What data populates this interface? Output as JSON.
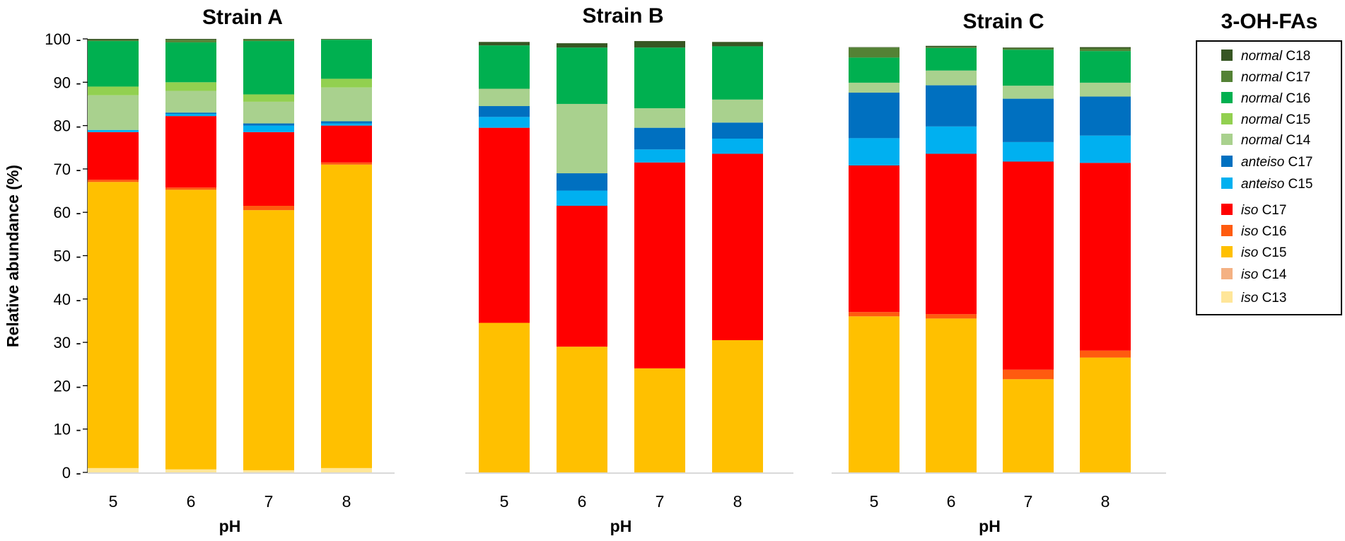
{
  "chart_data": {
    "type": "bar",
    "stacked": true,
    "ylabel": "Relative abundance (%)",
    "xlabel": "pH",
    "ylim": [
      0,
      100
    ],
    "yticks": [
      "0",
      "10",
      "20",
      "30",
      "40",
      "50",
      "60",
      "70",
      "80",
      "90",
      "100"
    ],
    "categories": [
      "5",
      "6",
      "7",
      "8"
    ],
    "legend": {
      "title": "3-OH-FAs",
      "entries": [
        {
          "key": "n18",
          "prefix": "normal",
          "suffix": " C18",
          "color": "#375623"
        },
        {
          "key": "n17",
          "prefix": "normal",
          "suffix": " C17",
          "color": "#548235"
        },
        {
          "key": "n16",
          "prefix": "normal",
          "suffix": " C16",
          "color": "#00B050"
        },
        {
          "key": "n15",
          "prefix": "normal",
          "suffix": " C15",
          "color": "#92D050"
        },
        {
          "key": "n14",
          "prefix": "normal",
          "suffix": " C14",
          "color": "#A9D18E"
        },
        {
          "key": "a17",
          "prefix": "anteiso",
          "suffix": " C17",
          "color": "#0070C0"
        },
        {
          "key": "a15",
          "prefix": "anteiso",
          "suffix": " C15",
          "color": "#00B0F0"
        },
        {
          "key": "i17",
          "prefix": "iso",
          "suffix": " C17",
          "color": "#FF0000"
        },
        {
          "key": "i16",
          "prefix": "iso",
          "suffix": " C16",
          "color": "#FF5B0F"
        },
        {
          "key": "i15",
          "prefix": "iso",
          "suffix": " C15",
          "color": "#FFC000"
        },
        {
          "key": "i14",
          "prefix": "iso",
          "suffix": " C14",
          "color": "#F4B183"
        },
        {
          "key": "i13",
          "prefix": "iso",
          "suffix": " C13",
          "color": "#FFE699"
        }
      ]
    },
    "stack_order": [
      "i13",
      "i14",
      "i15",
      "i16",
      "i17",
      "a15",
      "a17",
      "n14",
      "n15",
      "n16",
      "n17",
      "n18"
    ],
    "panels": [
      {
        "title": "Strain A",
        "series": {
          "i13": [
            1.0,
            0.7,
            0.5,
            1.0
          ],
          "i14": [
            0.0,
            0.0,
            0.0,
            0.0
          ],
          "i15": [
            66.0,
            64.5,
            60.0,
            70.0
          ],
          "i16": [
            0.5,
            0.5,
            1.0,
            0.5
          ],
          "i17": [
            11.0,
            16.5,
            17.0,
            8.5
          ],
          "a15": [
            0.5,
            0.5,
            1.5,
            0.5
          ],
          "a17": [
            0.0,
            0.3,
            0.5,
            0.5
          ],
          "n14": [
            8.0,
            5.0,
            5.0,
            7.8
          ],
          "n15": [
            2.0,
            2.0,
            1.7,
            2.0
          ],
          "n16": [
            10.5,
            9.2,
            12.3,
            9.0
          ],
          "n17": [
            0.2,
            0.6,
            0.4,
            0.1
          ],
          "n18": [
            0.3,
            0.2,
            0.1,
            0.1
          ]
        }
      },
      {
        "title": "Strain B",
        "series": {
          "i13": [
            0.0,
            0.0,
            0.0,
            0.0
          ],
          "i14": [
            0.0,
            0.0,
            0.0,
            0.0
          ],
          "i15": [
            34.5,
            29.0,
            24.0,
            30.5
          ],
          "i16": [
            0.0,
            0.0,
            0.0,
            0.0
          ],
          "i17": [
            45.0,
            32.5,
            47.5,
            43.0
          ],
          "a15": [
            2.5,
            3.5,
            3.0,
            3.5
          ],
          "a17": [
            2.5,
            4.0,
            5.0,
            3.7
          ],
          "n14": [
            4.0,
            16.0,
            4.5,
            5.3
          ],
          "n15": [
            0.0,
            0.0,
            0.0,
            0.0
          ],
          "n16": [
            10.0,
            13.0,
            14.0,
            12.3
          ],
          "n17": [
            0.0,
            0.0,
            0.0,
            0.0
          ],
          "n18": [
            0.8,
            1.0,
            1.5,
            1.0
          ]
        }
      },
      {
        "title": "Strain C",
        "series": {
          "i13": [
            0.0,
            0.0,
            0.0,
            0.0
          ],
          "i14": [
            0.0,
            0.0,
            0.0,
            0.0
          ],
          "i15": [
            36.0,
            35.5,
            21.5,
            26.5
          ],
          "i16": [
            1.0,
            1.0,
            2.2,
            1.6
          ],
          "i17": [
            33.8,
            37.0,
            48.0,
            43.3
          ],
          "a15": [
            6.3,
            6.3,
            4.5,
            6.3
          ],
          "a17": [
            10.5,
            9.5,
            10.0,
            9.0
          ],
          "n14": [
            2.3,
            3.4,
            3.0,
            3.2
          ],
          "n15": [
            0.0,
            0.0,
            0.0,
            0.0
          ],
          "n16": [
            5.8,
            5.2,
            8.3,
            7.3
          ],
          "n17": [
            2.3,
            0.2,
            0.3,
            0.6
          ],
          "n18": [
            0.1,
            0.3,
            0.2,
            0.3
          ]
        }
      }
    ]
  }
}
